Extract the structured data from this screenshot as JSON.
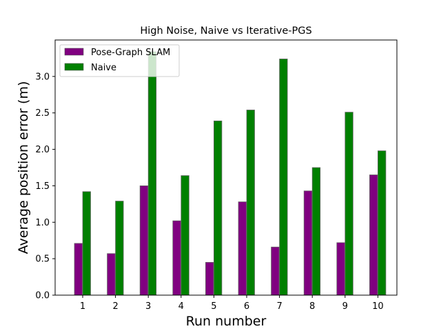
{
  "chart_data": {
    "type": "bar",
    "title": "High Noise, Naive vs Iterative-PGS",
    "xlabel": "Run number",
    "ylabel": "Average position error (m)",
    "categories": [
      "1",
      "2",
      "3",
      "4",
      "5",
      "6",
      "7",
      "8",
      "9",
      "10"
    ],
    "series": [
      {
        "name": "Pose-Graph SLAM",
        "color": "#800080",
        "values": [
          0.71,
          0.57,
          1.5,
          1.02,
          0.45,
          1.28,
          0.66,
          1.43,
          0.72,
          1.65
        ]
      },
      {
        "name": "Naive",
        "color": "#008000",
        "values": [
          1.42,
          1.29,
          3.34,
          1.64,
          2.39,
          2.54,
          3.24,
          1.75,
          2.51,
          1.98
        ]
      }
    ],
    "ylim": [
      0,
      3.5
    ],
    "yticks": [
      "0.0",
      "0.5",
      "1.0",
      "1.5",
      "2.0",
      "2.5",
      "3.0"
    ],
    "grid": false,
    "legend_position": "upper-left"
  }
}
